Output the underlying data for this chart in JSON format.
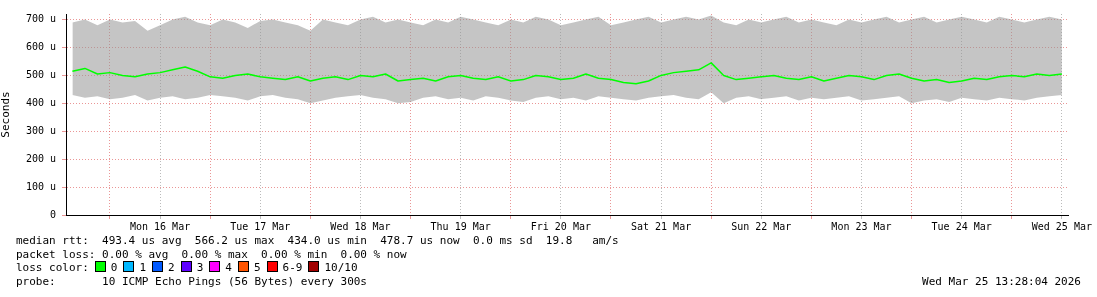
{
  "chart_data": {
    "type": "line",
    "ylabel": "Seconds",
    "legend_title": "loss color:",
    "legend": "bottom",
    "grid": true,
    "xlim": [
      "2026-03-15T13:28",
      "2026-03-25T13:28"
    ],
    "xticks": [
      {
        "value": "2026-03-16T00:00",
        "label": null
      },
      {
        "value": "2026-03-16T12:00",
        "label": "Mon 16 Mar"
      },
      {
        "value": "2026-03-17T00:00",
        "label": null
      },
      {
        "value": "2026-03-17T12:00",
        "label": "Tue 17 Mar"
      },
      {
        "value": "2026-03-18T00:00",
        "label": null
      },
      {
        "value": "2026-03-18T12:00",
        "label": "Wed 18 Mar"
      },
      {
        "value": "2026-03-19T00:00",
        "label": null
      },
      {
        "value": "2026-03-19T12:00",
        "label": "Thu 19 Mar"
      },
      {
        "value": "2026-03-20T00:00",
        "label": null
      },
      {
        "value": "2026-03-20T12:00",
        "label": "Fri 20 Mar"
      },
      {
        "value": "2026-03-21T00:00",
        "label": null
      },
      {
        "value": "2026-03-21T12:00",
        "label": "Sat 21 Mar"
      },
      {
        "value": "2026-03-22T00:00",
        "label": null
      },
      {
        "value": "2026-03-22T12:00",
        "label": "Sun 22 Mar"
      },
      {
        "value": "2026-03-23T00:00",
        "label": null
      },
      {
        "value": "2026-03-23T12:00",
        "label": "Mon 23 Mar"
      },
      {
        "value": "2026-03-24T00:00",
        "label": null
      },
      {
        "value": "2026-03-24T12:00",
        "label": "Tue 24 Mar"
      },
      {
        "value": "2026-03-25T00:00",
        "label": null
      },
      {
        "value": "2026-03-25T12:00",
        "label": "Wed 25 Mar"
      }
    ],
    "ylim": [
      0,
      720
    ],
    "yticks": [
      0,
      {
        "value": 100,
        "label": "100 u"
      },
      {
        "value": 200,
        "label": "200 u"
      },
      {
        "value": 300,
        "label": "300 u"
      },
      {
        "value": 400,
        "label": "400 u"
      },
      {
        "value": 500,
        "label": "500 u"
      },
      {
        "value": 600,
        "label": "600 u"
      },
      {
        "value": 700,
        "label": "700 u"
      }
    ],
    "x": [
      "2026-03-15T15:00",
      "2026-03-15T18:00",
      "2026-03-15T21:00",
      "2026-03-16T00:00",
      "2026-03-16T03:00",
      "2026-03-16T06:00",
      "2026-03-16T09:00",
      "2026-03-16T12:00",
      "2026-03-16T15:00",
      "2026-03-16T18:00",
      "2026-03-16T21:00",
      "2026-03-17T00:00",
      "2026-03-17T03:00",
      "2026-03-17T06:00",
      "2026-03-17T09:00",
      "2026-03-17T12:00",
      "2026-03-17T15:00",
      "2026-03-17T18:00",
      "2026-03-17T21:00",
      "2026-03-18T00:00",
      "2026-03-18T03:00",
      "2026-03-18T06:00",
      "2026-03-18T09:00",
      "2026-03-18T12:00",
      "2026-03-18T15:00",
      "2026-03-18T18:00",
      "2026-03-18T21:00",
      "2026-03-19T00:00",
      "2026-03-19T03:00",
      "2026-03-19T06:00",
      "2026-03-19T09:00",
      "2026-03-19T12:00",
      "2026-03-19T15:00",
      "2026-03-19T18:00",
      "2026-03-19T21:00",
      "2026-03-20T00:00",
      "2026-03-20T03:00",
      "2026-03-20T06:00",
      "2026-03-20T09:00",
      "2026-03-20T12:00",
      "2026-03-20T15:00",
      "2026-03-20T18:00",
      "2026-03-20T21:00",
      "2026-03-21T00:00",
      "2026-03-21T03:00",
      "2026-03-21T06:00",
      "2026-03-21T09:00",
      "2026-03-21T12:00",
      "2026-03-21T15:00",
      "2026-03-21T18:00",
      "2026-03-21T21:00",
      "2026-03-22T00:00",
      "2026-03-22T03:00",
      "2026-03-22T06:00",
      "2026-03-22T09:00",
      "2026-03-22T12:00",
      "2026-03-22T15:00",
      "2026-03-22T18:00",
      "2026-03-22T21:00",
      "2026-03-23T00:00",
      "2026-03-23T03:00",
      "2026-03-23T06:00",
      "2026-03-23T09:00",
      "2026-03-23T12:00",
      "2026-03-23T15:00",
      "2026-03-23T18:00",
      "2026-03-23T21:00",
      "2026-03-24T00:00",
      "2026-03-24T03:00",
      "2026-03-24T06:00",
      "2026-03-24T09:00",
      "2026-03-24T12:00",
      "2026-03-24T15:00",
      "2026-03-24T18:00",
      "2026-03-24T21:00",
      "2026-03-25T00:00",
      "2026-03-25T03:00",
      "2026-03-25T06:00",
      "2026-03-25T09:00",
      "2026-03-25T12:00"
    ],
    "series": [
      {
        "name": "0",
        "color": "#00ff00",
        "values": [
          515,
          525,
          505,
          510,
          500,
          495,
          505,
          510,
          520,
          530,
          515,
          495,
          490,
          500,
          505,
          495,
          490,
          485,
          495,
          480,
          490,
          495,
          485,
          500,
          495,
          505,
          480,
          485,
          490,
          480,
          495,
          500,
          490,
          485,
          495,
          480,
          485,
          500,
          495,
          485,
          490,
          505,
          490,
          485,
          475,
          470,
          480,
          500,
          510,
          515,
          520,
          545,
          500,
          485,
          490,
          495,
          500,
          490,
          485,
          495,
          480,
          490,
          500,
          495,
          485,
          500,
          505,
          490,
          480,
          485,
          475,
          480,
          490,
          485,
          495,
          500,
          495,
          505,
          500,
          505
        ],
        "lower": [
          430,
          420,
          425,
          415,
          420,
          430,
          410,
          420,
          425,
          415,
          420,
          430,
          425,
          420,
          410,
          425,
          430,
          420,
          415,
          400,
          410,
          420,
          425,
          430,
          420,
          415,
          400,
          405,
          420,
          425,
          415,
          420,
          410,
          425,
          420,
          410,
          405,
          420,
          425,
          415,
          420,
          410,
          425,
          420,
          415,
          410,
          420,
          425,
          430,
          420,
          415,
          440,
          400,
          420,
          425,
          415,
          420,
          425,
          410,
          420,
          415,
          420,
          425,
          410,
          415,
          420,
          425,
          400,
          410,
          415,
          405,
          420,
          415,
          410,
          420,
          415,
          410,
          420,
          425,
          430
        ],
        "upper": [
          690,
          700,
          680,
          700,
          690,
          695,
          660,
          680,
          700,
          710,
          690,
          680,
          700,
          690,
          670,
          695,
          700,
          690,
          680,
          660,
          700,
          690,
          680,
          700,
          710,
          690,
          700,
          690,
          680,
          700,
          690,
          710,
          700,
          690,
          680,
          700,
          690,
          710,
          700,
          680,
          690,
          700,
          710,
          680,
          690,
          700,
          710,
          690,
          700,
          710,
          700,
          715,
          690,
          680,
          700,
          690,
          700,
          710,
          690,
          700,
          690,
          680,
          700,
          690,
          700,
          710,
          690,
          700,
          710,
          690,
          700,
          710,
          700,
          690,
          710,
          700,
          690,
          700,
          710,
          700
        ]
      },
      {
        "name": "1",
        "color": "#00b8ff",
        "values": [
          null,
          null,
          null,
          null,
          null,
          null,
          null,
          null,
          null,
          null,
          null,
          null,
          null,
          null,
          null,
          null,
          null,
          null,
          null,
          null,
          null,
          null,
          null,
          null,
          null,
          null,
          null,
          null,
          null,
          null,
          null,
          null,
          null,
          null,
          null,
          null,
          null,
          null,
          null,
          null,
          null,
          null,
          null,
          null,
          null,
          null,
          null,
          null,
          null,
          null,
          null,
          null,
          null,
          null,
          null,
          null,
          null,
          null,
          null,
          null,
          null,
          null,
          null,
          null,
          null,
          null,
          null,
          null,
          null,
          null,
          null,
          null,
          null,
          null,
          null,
          null,
          null,
          null,
          null,
          null
        ]
      },
      {
        "name": "2",
        "color": "#0059ff",
        "values": [
          null,
          null,
          null,
          null,
          null,
          null,
          null,
          null,
          null,
          null,
          null,
          null,
          null,
          null,
          null,
          null,
          null,
          null,
          null,
          null,
          null,
          null,
          null,
          null,
          null,
          null,
          null,
          null,
          null,
          null,
          null,
          null,
          null,
          null,
          null,
          null,
          null,
          null,
          null,
          null,
          null,
          null,
          null,
          null,
          null,
          null,
          null,
          null,
          null,
          null,
          null,
          null,
          null,
          null,
          null,
          null,
          null,
          null,
          null,
          null,
          null,
          null,
          null,
          null,
          null,
          null,
          null,
          null,
          null,
          null,
          null,
          null,
          null,
          null,
          null,
          null,
          null,
          null,
          null,
          null
        ]
      },
      {
        "name": "3",
        "color": "#5e00ff",
        "values": [
          null,
          null,
          null,
          null,
          null,
          null,
          null,
          null,
          null,
          null,
          null,
          null,
          null,
          null,
          null,
          null,
          null,
          null,
          null,
          null,
          null,
          null,
          null,
          null,
          null,
          null,
          null,
          null,
          null,
          null,
          null,
          null,
          null,
          null,
          null,
          null,
          null,
          null,
          null,
          null,
          null,
          null,
          null,
          null,
          null,
          null,
          null,
          null,
          null,
          null,
          null,
          null,
          null,
          null,
          null,
          null,
          null,
          null,
          null,
          null,
          null,
          null,
          null,
          null,
          null,
          null,
          null,
          null,
          null,
          null,
          null,
          null,
          null,
          null,
          null,
          null,
          null,
          null,
          null,
          null
        ]
      },
      {
        "name": "4",
        "color": "#ff00ff",
        "values": [
          null,
          null,
          null,
          null,
          null,
          null,
          null,
          null,
          null,
          null,
          null,
          null,
          null,
          null,
          null,
          null,
          null,
          null,
          null,
          null,
          null,
          null,
          null,
          null,
          null,
          null,
          null,
          null,
          null,
          null,
          null,
          null,
          null,
          null,
          null,
          null,
          null,
          null,
          null,
          null,
          null,
          null,
          null,
          null,
          null,
          null,
          null,
          null,
          null,
          null,
          null,
          null,
          null,
          null,
          null,
          null,
          null,
          null,
          null,
          null,
          null,
          null,
          null,
          null,
          null,
          null,
          null,
          null,
          null,
          null,
          null,
          null,
          null,
          null,
          null,
          null,
          null,
          null,
          null,
          null
        ]
      },
      {
        "name": "5",
        "color": "#ff5500",
        "values": [
          null,
          null,
          null,
          null,
          null,
          null,
          null,
          null,
          null,
          null,
          null,
          null,
          null,
          null,
          null,
          null,
          null,
          null,
          null,
          null,
          null,
          null,
          null,
          null,
          null,
          null,
          null,
          null,
          null,
          null,
          null,
          null,
          null,
          null,
          null,
          null,
          null,
          null,
          null,
          null,
          null,
          null,
          null,
          null,
          null,
          null,
          null,
          null,
          null,
          null,
          null,
          null,
          null,
          null,
          null,
          null,
          null,
          null,
          null,
          null,
          null,
          null,
          null,
          null,
          null,
          null,
          null,
          null,
          null,
          null,
          null,
          null,
          null,
          null,
          null,
          null,
          null,
          null,
          null,
          null
        ]
      },
      {
        "name": "6-9",
        "color": "#ff0000",
        "values": [
          null,
          null,
          null,
          null,
          null,
          null,
          null,
          null,
          null,
          null,
          null,
          null,
          null,
          null,
          null,
          null,
          null,
          null,
          null,
          null,
          null,
          null,
          null,
          null,
          null,
          null,
          null,
          null,
          null,
          null,
          null,
          null,
          null,
          null,
          null,
          null,
          null,
          null,
          null,
          null,
          null,
          null,
          null,
          null,
          null,
          null,
          null,
          null,
          null,
          null,
          null,
          null,
          null,
          null,
          null,
          null,
          null,
          null,
          null,
          null,
          null,
          null,
          null,
          null,
          null,
          null,
          null,
          null,
          null,
          null,
          null,
          null,
          null,
          null,
          null,
          null,
          null,
          null,
          null,
          null
        ]
      },
      {
        "name": "10/10",
        "color": "#a10000",
        "values": [
          null,
          null,
          null,
          null,
          null,
          null,
          null,
          null,
          null,
          null,
          null,
          null,
          null,
          null,
          null,
          null,
          null,
          null,
          null,
          null,
          null,
          null,
          null,
          null,
          null,
          null,
          null,
          null,
          null,
          null,
          null,
          null,
          null,
          null,
          null,
          null,
          null,
          null,
          null,
          null,
          null,
          null,
          null,
          null,
          null,
          null,
          null,
          null,
          null,
          null,
          null,
          null,
          null,
          null,
          null,
          null,
          null,
          null,
          null,
          null,
          null,
          null,
          null,
          null,
          null,
          null,
          null,
          null,
          null,
          null,
          null,
          null,
          null,
          null,
          null,
          null,
          null,
          null,
          null,
          null
        ]
      }
    ],
    "annotations": [
      "median rtt:  493.4 us avg  566.2 us max  434.0 us min  478.7 us now  0.0 ms sd  19.8   am/s",
      "packet loss: 0.00 % avg  0.00 % max  0.00 % min  0.00 % now",
      "probe:       10 ICMP Echo Pings (56 Bytes) every 300s",
      "Wed Mar 25 13:28:04 2026"
    ]
  }
}
